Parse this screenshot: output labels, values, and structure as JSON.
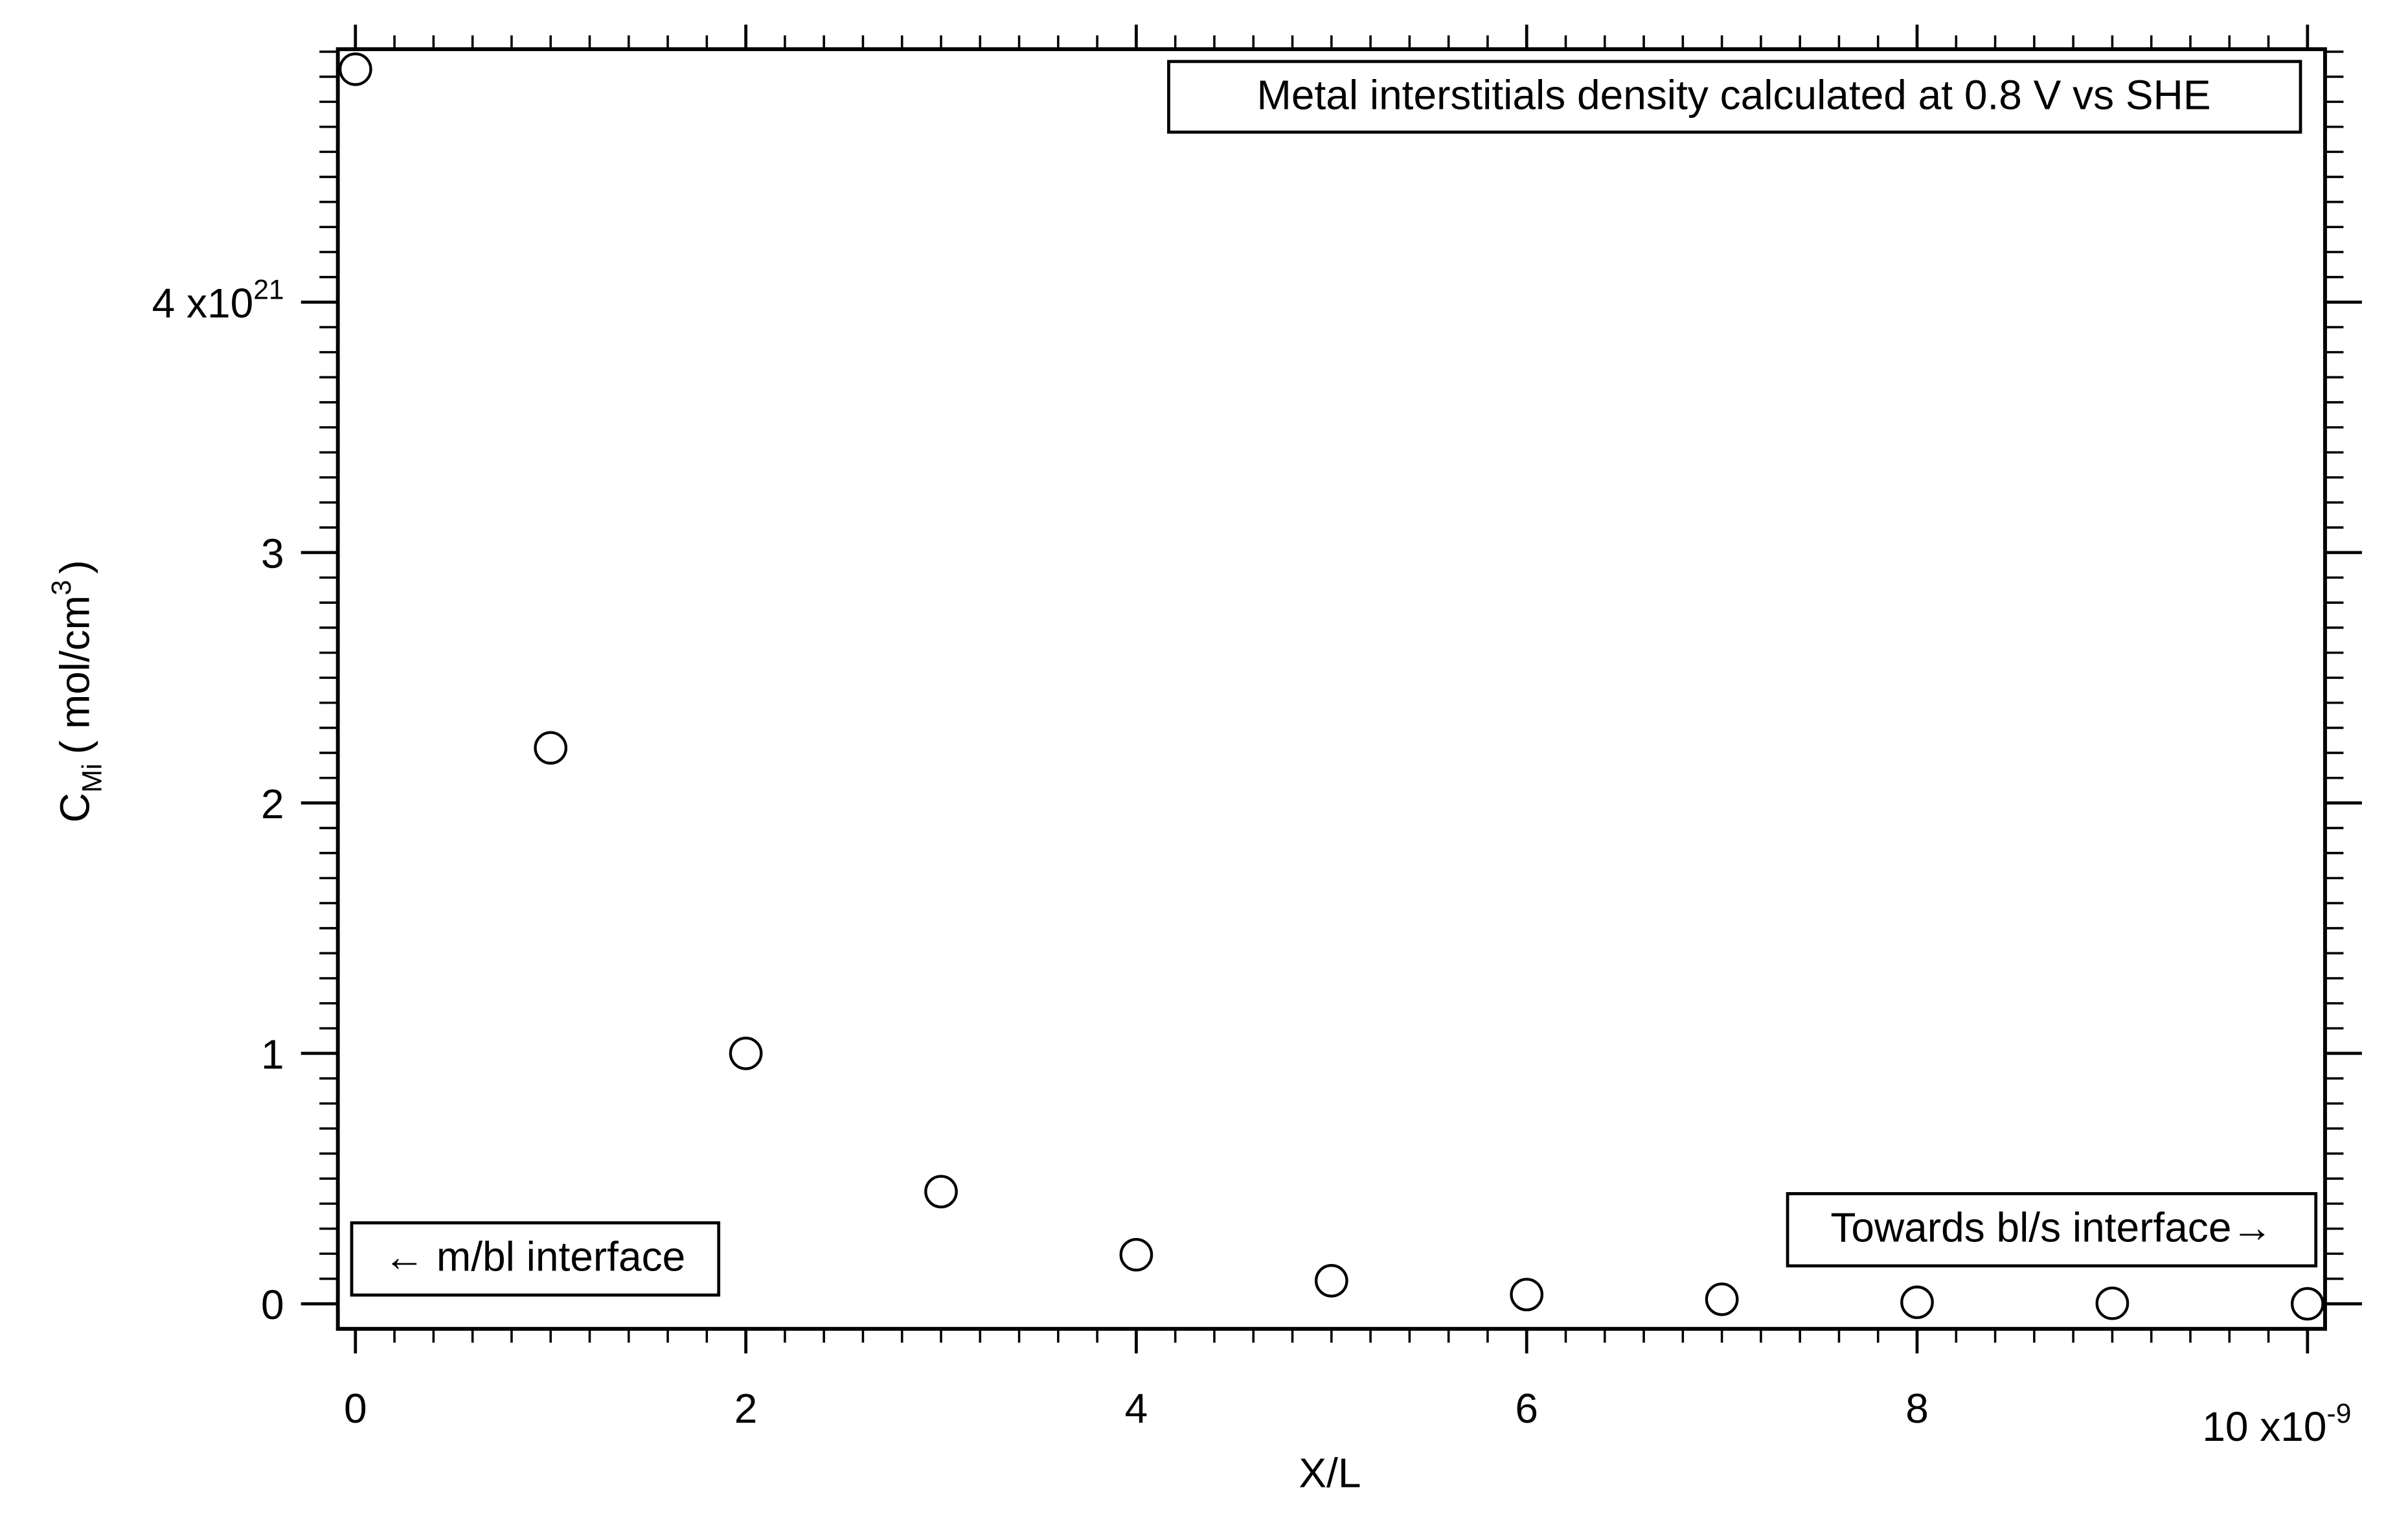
{
  "chart_data": {
    "type": "scatter",
    "x_label": "X/L",
    "y_label": {
      "text": "C",
      "subscript": "Mi",
      "text_after": "( mol/cm",
      "superscript": "3",
      "text_end": ")"
    },
    "annotations": [
      "Metal interstitials density calculated at 0.8 V vs SHE",
      "← m/bl interface",
      "Towards bl/s interface→"
    ],
    "series": [
      {
        "color": "#000000",
        "x": [
          0,
          1,
          2,
          3,
          4,
          5,
          6,
          7,
          8,
          9,
          10
        ],
        "values": [
          4.93,
          2.22,
          1.0,
          0.448,
          0.196,
          0.092,
          0.037,
          0.018,
          0.006,
          0.002,
          0
        ]
      }
    ],
    "xlim": [
      -0.09,
      10.09
    ],
    "ylim": [
      -0.1,
      5.01
    ],
    "xticks": [
      0,
      2,
      4,
      6,
      8,
      {
        "value": 10,
        "label": "10 x10",
        "label_superscript": "-9"
      }
    ],
    "yticks": [
      0,
      1,
      2,
      3,
      {
        "value": 4,
        "label": "4 x10",
        "label_superscript": "21"
      }
    ],
    "xminorticks": [
      0.2,
      0.4,
      0.6,
      0.8,
      1,
      1.2,
      1.4,
      1.6,
      1.8,
      2.2,
      2.4,
      2.6,
      2.8,
      3,
      3.2,
      3.4,
      3.6,
      3.8,
      4.2,
      4.4,
      4.6,
      4.8,
      5,
      5.2,
      5.4,
      5.6,
      5.8,
      6.2,
      6.4,
      6.6,
      6.8,
      7,
      7.2,
      7.4,
      7.6,
      7.8,
      8.2,
      8.4,
      8.6,
      8.8,
      9,
      9.2,
      9.4,
      9.6,
      9.8
    ],
    "yminorticks": [
      0.1,
      0.2,
      0.3,
      0.4,
      0.5,
      0.6,
      0.7,
      0.8,
      0.9,
      1.1,
      1.2,
      1.3,
      1.4,
      1.5,
      1.6,
      1.7,
      1.8,
      1.9,
      2.1,
      2.2,
      2.3,
      2.4,
      2.5,
      2.6,
      2.7,
      2.8,
      2.9,
      3.1,
      3.2,
      3.3,
      3.4,
      3.5,
      3.6,
      3.7,
      3.8,
      3.9,
      4.1,
      4.2,
      4.3,
      4.4,
      4.5,
      4.6,
      4.7,
      4.8,
      4.9,
      5
    ],
    "grid": false
  }
}
